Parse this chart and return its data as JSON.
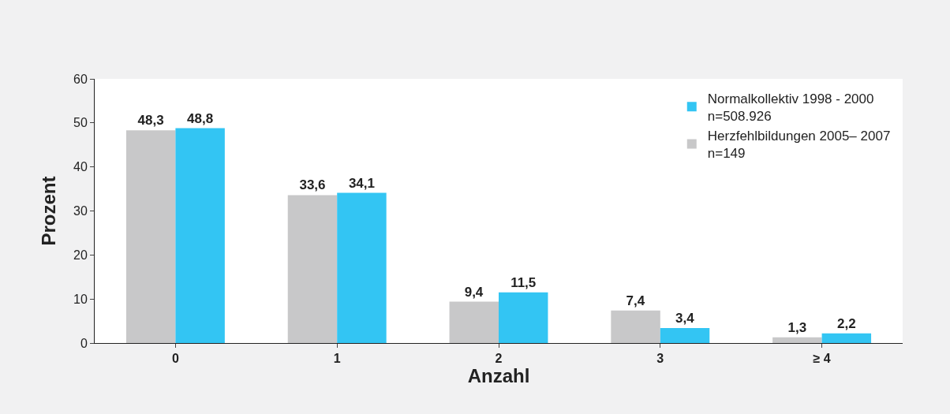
{
  "chart_data": {
    "type": "bar",
    "xlabel": "Anzahl",
    "ylabel": "Prozent",
    "categories": [
      "0",
      "1",
      "2",
      "3",
      "≥ 4"
    ],
    "series": [
      {
        "name": "Herzfehlbildungen 2005– 2007\nn=149",
        "color": "#c8c8c9",
        "values": [
          48.3,
          33.6,
          9.4,
          7.4,
          1.3
        ],
        "value_labels": [
          "48,3",
          "33,6",
          "9,4",
          "7,4",
          "1,3"
        ]
      },
      {
        "name": "Normalkollektiv 1998 - 2000\nn=508.926",
        "color": "#33c5f3",
        "values": [
          48.8,
          34.1,
          11.5,
          3.4,
          2.2
        ],
        "value_labels": [
          "48,8",
          "34,1",
          "11,5",
          "3,4",
          "2,2"
        ]
      }
    ],
    "ylim": [
      0,
      60
    ],
    "yticks": [
      0,
      10,
      20,
      30,
      40,
      50,
      60
    ],
    "legend": "top right"
  }
}
